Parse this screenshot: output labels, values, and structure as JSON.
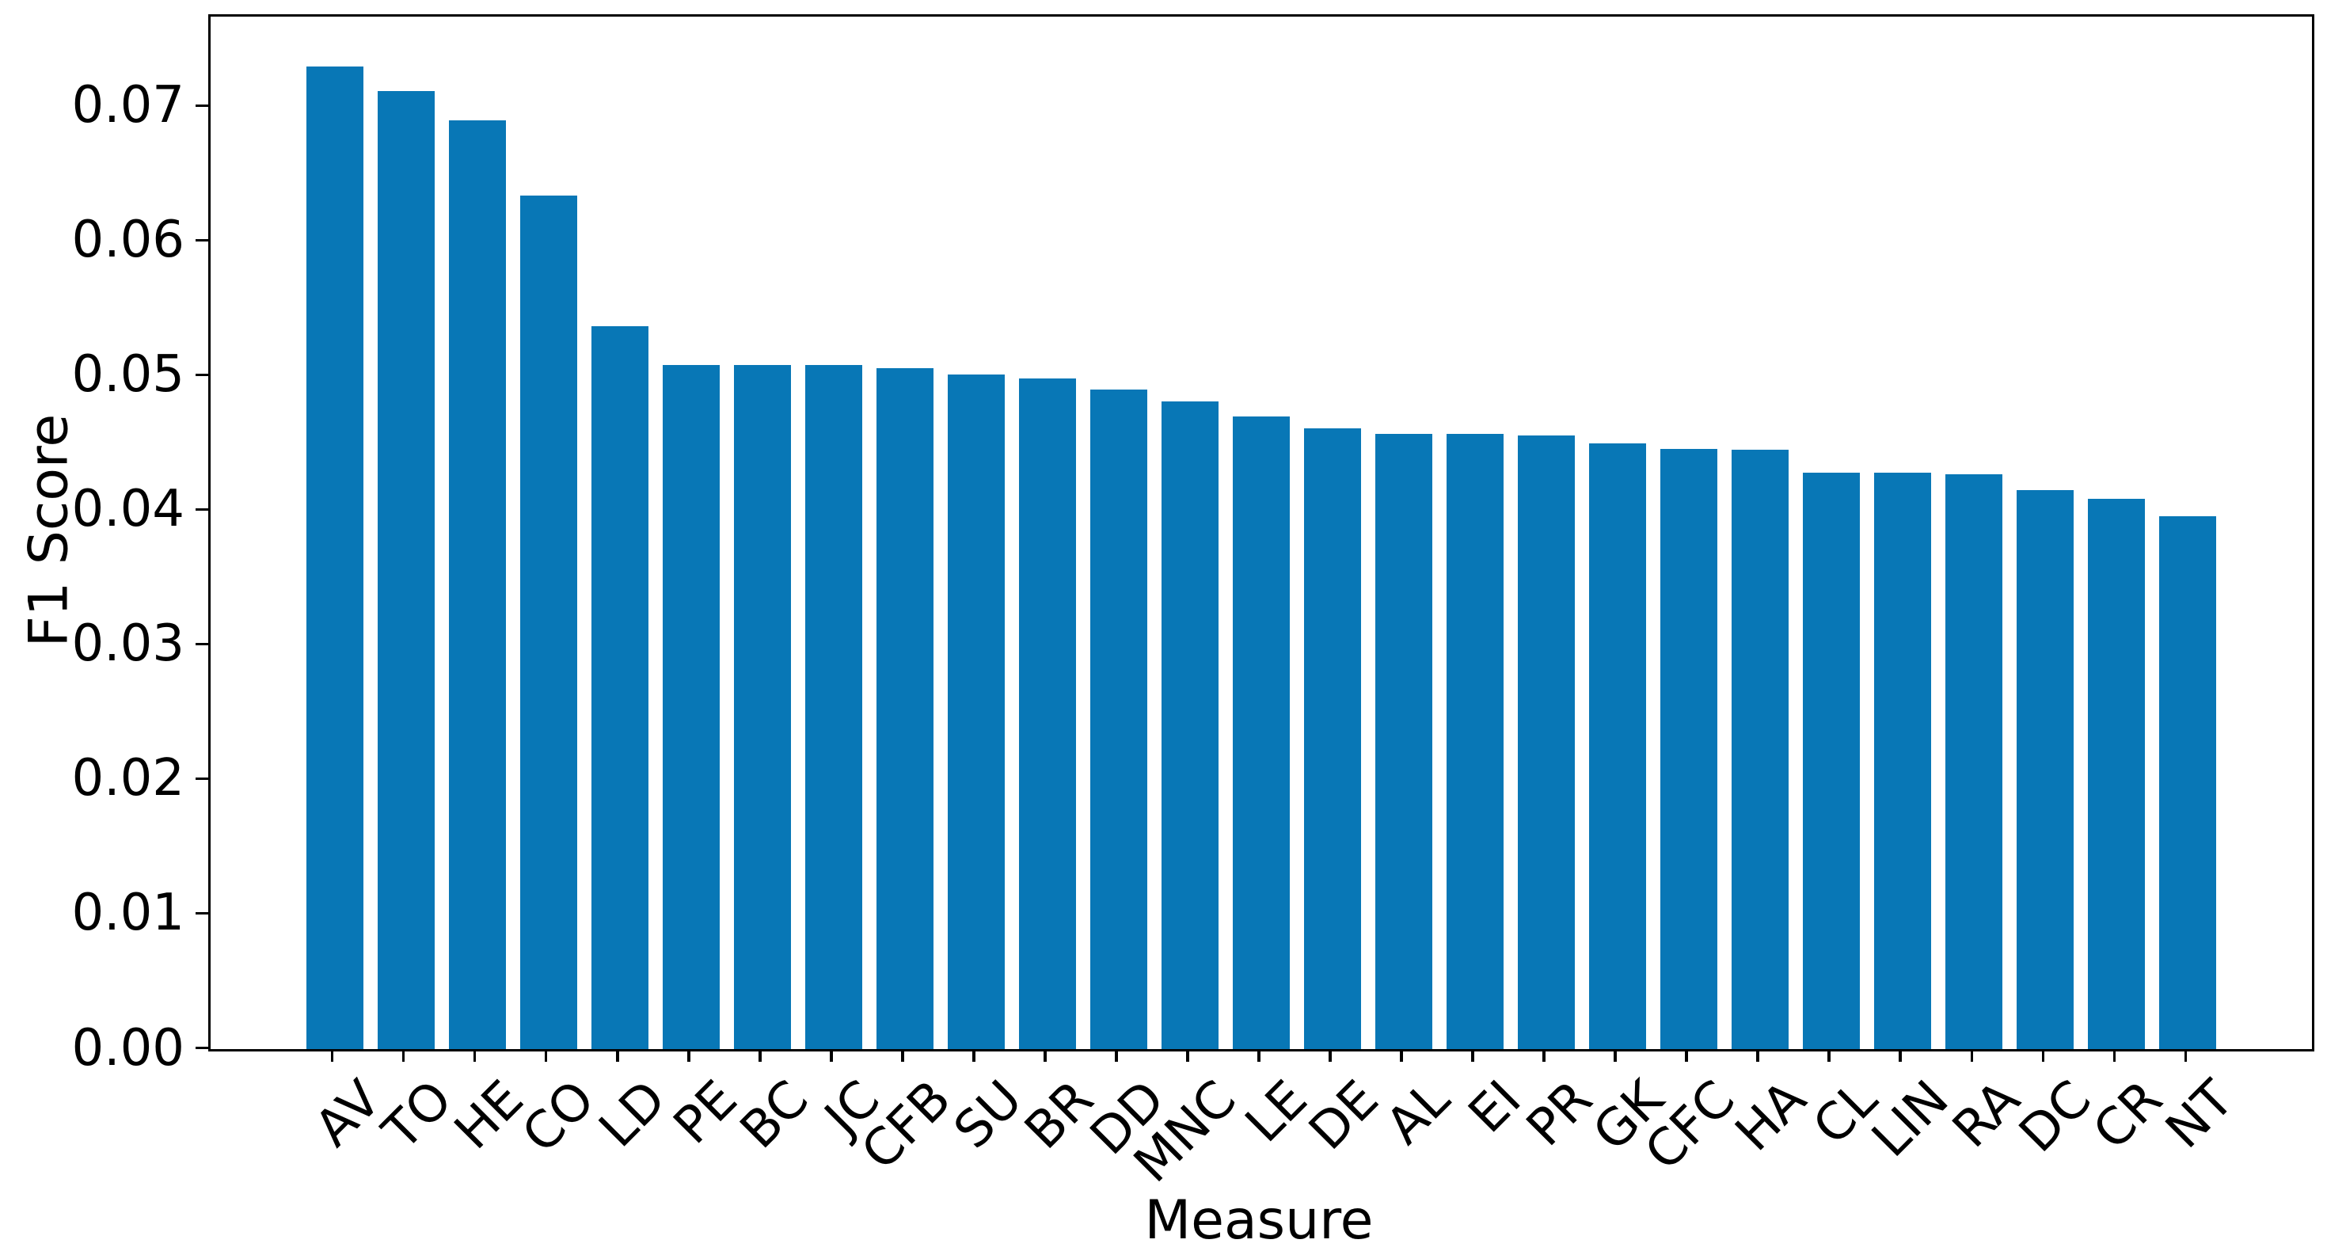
{
  "chart_data": {
    "type": "bar",
    "title": "",
    "xlabel": "Measure",
    "ylabel": "F1 Score",
    "categories": [
      "AV",
      "TO",
      "HE",
      "CO",
      "LD",
      "PE",
      "BC",
      "JC",
      "CFB",
      "SU",
      "BR",
      "DD",
      "MNC",
      "LE",
      "DE",
      "AL",
      "EI",
      "PR",
      "GK",
      "CFC",
      "HA",
      "CL",
      "LIN",
      "RA",
      "DC",
      "CR",
      "NT"
    ],
    "values": [
      0.073,
      0.0712,
      0.069,
      0.0634,
      0.0537,
      0.0508,
      0.0508,
      0.0508,
      0.0506,
      0.0501,
      0.0498,
      0.049,
      0.0481,
      0.047,
      0.0461,
      0.0457,
      0.0457,
      0.0456,
      0.045,
      0.0446,
      0.0445,
      0.0428,
      0.0428,
      0.0427,
      0.0415,
      0.0409,
      0.0396
    ],
    "ytick_values": [
      0.0,
      0.01,
      0.02,
      0.03,
      0.04,
      0.05,
      0.06,
      0.07
    ],
    "ytick_labels": [
      "0.00",
      "0.01",
      "0.02",
      "0.03",
      "0.04",
      "0.05",
      "0.06",
      "0.07"
    ],
    "ylim": [
      0,
      0.0767
    ],
    "bar_color": "#0877b6",
    "axis_color": "#000000",
    "grid": false,
    "legend": null,
    "xtick_rotation_deg": -45
  }
}
